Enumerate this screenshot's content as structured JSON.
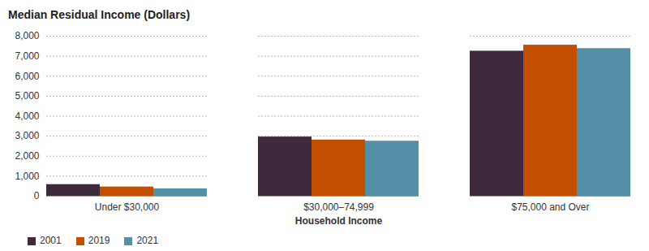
{
  "chart_data": {
    "type": "bar",
    "title": "Median Residual Income (Dollars)",
    "x_label": "Household Income",
    "categories": [
      "Under $30,000",
      "$30,000–74,999",
      "$75,000 and Over"
    ],
    "series": [
      {
        "name": "2001",
        "color": "#3f2a3d",
        "values": [
          580,
          2960,
          7250
        ]
      },
      {
        "name": "2019",
        "color": "#c24e00",
        "values": [
          460,
          2810,
          7550
        ]
      },
      {
        "name": "2021",
        "color": "#5390a8",
        "values": [
          370,
          2750,
          7380
        ]
      }
    ],
    "ylim": [
      0,
      8000
    ],
    "yticks": [
      0,
      {
        "value": 1000,
        "label": "1,000"
      },
      {
        "value": 2000,
        "label": "2,000"
      },
      {
        "value": 3000,
        "label": "3,000"
      },
      {
        "value": 4000,
        "label": "4,000"
      },
      {
        "value": 5000,
        "label": "5,000"
      },
      {
        "value": 6000,
        "label": "6,000"
      },
      {
        "value": 7000,
        "label": "7,000"
      },
      {
        "value": 8000,
        "label": "8,000"
      }
    ],
    "grid": true,
    "legend": "bottom-left"
  }
}
